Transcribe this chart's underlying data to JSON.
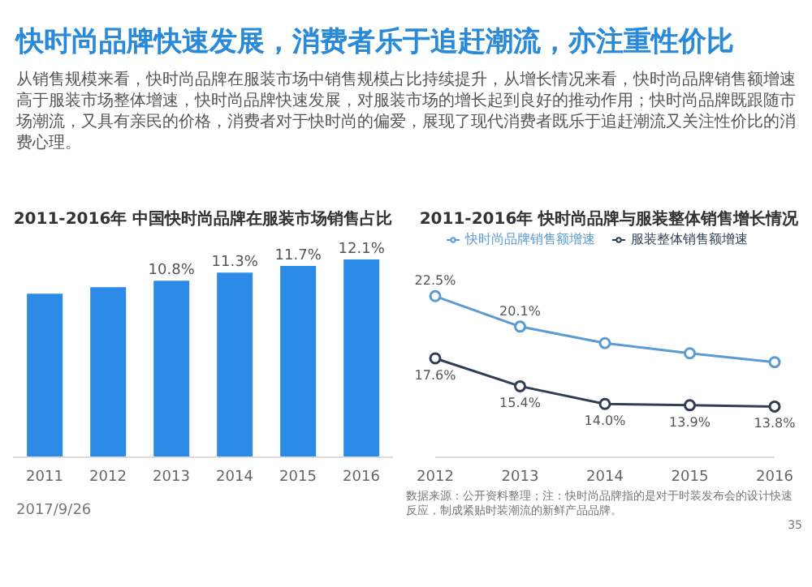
{
  "chart_data": [
    {
      "type": "other",
      "title": "快时尚品牌快速发展，消费者乐于追赶潮流，亦注重性价比",
      "annotations": [
        "从销售规模来看，快时尚品牌在服装市场中销售规模占比持续提升，从增长情况来看，快时尚品牌销售额增速高于服装市场整体增速，快时尚品牌快速发展，对服装市场的增长起到良好的推动作用；快时尚品牌既跟随市场潮流，又具有亲民的价格，消费者对于快时尚的偏爱，展现了现代消费者既乐于追赶潮流又关注性价比的消费心理。"
      ]
    },
    {
      "type": "bar",
      "title": "2011-2016年 中国快时尚品牌在服装市场销售占比",
      "categories": [
        "2011",
        "2012",
        "2013",
        "2014",
        "2015",
        "2016"
      ],
      "values": [
        10.0,
        10.4,
        10.8,
        11.3,
        11.7,
        12.1
      ],
      "value_labels": [
        null,
        null,
        "10.8%",
        "11.3%",
        "11.7%",
        "12.1%"
      ],
      "color": "#2b8be6",
      "grid": false,
      "legend": false,
      "annotations": [
        "2017/9/26"
      ]
    },
    {
      "type": "line",
      "title": "2011-2016年 快时尚品牌与服装整体销售增长情况",
      "categories": [
        "2012",
        "2013",
        "2014",
        "2015",
        "2016"
      ],
      "series": [
        {
          "name": "快时尚品牌销售额增速",
          "color": "#5b9bd5",
          "values": [
            22.5,
            20.1,
            18.8,
            18.0,
            17.3
          ],
          "value_labels": [
            "22.5%",
            "20.1%",
            null,
            null,
            null
          ]
        },
        {
          "name": "服装整体销售额增速",
          "color": "#2f3e55",
          "values": [
            17.6,
            15.4,
            14.0,
            13.9,
            13.8
          ],
          "value_labels": [
            "17.6%",
            "15.4%",
            "14.0%",
            "13.9%",
            "13.8%"
          ]
        }
      ],
      "marker": "circle",
      "line_style": "solid",
      "grid": false,
      "legend": "top",
      "annotations": [
        "数据来源：公开资料整理；注：快时尚品牌指的是对于时装发布会的设计快速反应，制成紧贴时装潮流的新鲜产品品牌。",
        "35"
      ]
    }
  ]
}
